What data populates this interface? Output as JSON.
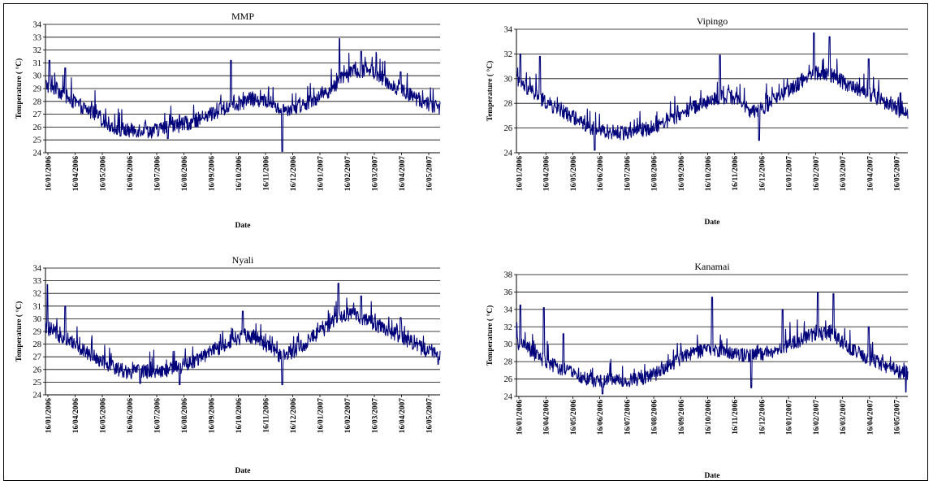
{
  "chart_data": [
    {
      "type": "line",
      "title": "MMP",
      "xlabel": "Date",
      "ylabel": "Temperature ( °C)",
      "ylim": [
        24,
        34
      ],
      "yticks": [
        24,
        25,
        26,
        27,
        28,
        29,
        30,
        31,
        32,
        33,
        34
      ],
      "grid": true,
      "x_tick_labels": [
        "16/01/2006",
        "16/04/2006",
        "16/05/2006",
        "16/06/2006",
        "16/07/2006",
        "16/08/2006",
        "16/09/2006",
        "16/10/2006",
        "16/11/2006",
        "16/12/2006",
        "16/01/2007",
        "16/02/2007",
        "16/03/2007",
        "16/04/2007",
        "16/05/2007"
      ],
      "series": [
        {
          "color": "#00007a",
          "points": [
            [
              0,
              29.3
            ],
            [
              0.03,
              28.9
            ],
            [
              0.06,
              28.2
            ],
            [
              0.09,
              27.6
            ],
            [
              0.12,
              27.1
            ],
            [
              0.15,
              26.4
            ],
            [
              0.18,
              25.9
            ],
            [
              0.21,
              25.7
            ],
            [
              0.24,
              25.8
            ],
            [
              0.27,
              25.7
            ],
            [
              0.3,
              25.9
            ],
            [
              0.33,
              26.1
            ],
            [
              0.36,
              26.3
            ],
            [
              0.39,
              26.6
            ],
            [
              0.42,
              27.0
            ],
            [
              0.45,
              27.4
            ],
            [
              0.48,
              27.8
            ],
            [
              0.51,
              28.0
            ],
            [
              0.54,
              28.1
            ],
            [
              0.57,
              27.9
            ],
            [
              0.6,
              27.4
            ],
            [
              0.63,
              27.5
            ],
            [
              0.66,
              27.9
            ],
            [
              0.69,
              28.3
            ],
            [
              0.72,
              28.9
            ],
            [
              0.75,
              29.7
            ],
            [
              0.78,
              30.3
            ],
            [
              0.81,
              30.4
            ],
            [
              0.84,
              30.2
            ],
            [
              0.87,
              29.4
            ],
            [
              0.9,
              28.9
            ],
            [
              0.93,
              28.4
            ],
            [
              0.96,
              27.9
            ],
            [
              1.0,
              27.5
            ]
          ],
          "extremes": [
            [
              0.01,
              31.2
            ],
            [
              0.05,
              30.6
            ],
            [
              0.19,
              25.3
            ],
            [
              0.31,
              25.1
            ],
            [
              0.47,
              31.2
            ],
            [
              0.6,
              24.1
            ],
            [
              0.745,
              32.9
            ],
            [
              0.8,
              31.9
            ],
            [
              0.9,
              30.3
            ]
          ]
        }
      ]
    },
    {
      "type": "line",
      "title": "Vipingo",
      "xlabel": "Date",
      "ylabel": "Temperature ( °C)",
      "ylim": [
        24,
        34
      ],
      "yticks": [
        24,
        26,
        28,
        30,
        32,
        34
      ],
      "grid": true,
      "x_tick_labels": [
        "16/01/2006",
        "16/04/2006",
        "16/05/2006",
        "16/06/2006",
        "16/07/2006",
        "16/08/2006",
        "16/09/2006",
        "16/10/2006",
        "16/11/2006",
        "16/12/2006",
        "16/01/2007",
        "16/02/2007",
        "16/03/2007",
        "16/04/2007",
        "16/05/2007"
      ],
      "series": [
        {
          "color": "#00007a",
          "points": [
            [
              0,
              29.8
            ],
            [
              0.03,
              29.2
            ],
            [
              0.06,
              28.4
            ],
            [
              0.09,
              27.8
            ],
            [
              0.12,
              27.3
            ],
            [
              0.15,
              26.8
            ],
            [
              0.18,
              26.2
            ],
            [
              0.21,
              25.8
            ],
            [
              0.24,
              25.7
            ],
            [
              0.27,
              25.6
            ],
            [
              0.3,
              25.8
            ],
            [
              0.33,
              25.9
            ],
            [
              0.36,
              26.2
            ],
            [
              0.39,
              26.6
            ],
            [
              0.42,
              27.1
            ],
            [
              0.45,
              27.6
            ],
            [
              0.48,
              28.0
            ],
            [
              0.51,
              28.4
            ],
            [
              0.54,
              28.6
            ],
            [
              0.57,
              28.2
            ],
            [
              0.6,
              27.2
            ],
            [
              0.63,
              27.6
            ],
            [
              0.66,
              28.3
            ],
            [
              0.69,
              28.9
            ],
            [
              0.72,
              29.6
            ],
            [
              0.75,
              30.3
            ],
            [
              0.78,
              30.5
            ],
            [
              0.81,
              30.2
            ],
            [
              0.84,
              29.6
            ],
            [
              0.87,
              29.2
            ],
            [
              0.9,
              28.8
            ],
            [
              0.93,
              28.3
            ],
            [
              0.96,
              27.8
            ],
            [
              1.0,
              27.0
            ]
          ],
          "extremes": [
            [
              0.01,
              32.0
            ],
            [
              0.06,
              31.8
            ],
            [
              0.2,
              24.2
            ],
            [
              0.52,
              31.9
            ],
            [
              0.62,
              25.0
            ],
            [
              0.76,
              33.7
            ],
            [
              0.8,
              33.4
            ],
            [
              0.9,
              31.6
            ]
          ]
        }
      ]
    },
    {
      "type": "line",
      "title": "Nyali",
      "xlabel": "Date",
      "ylabel": "Temperature ( °C)",
      "ylim": [
        24,
        34
      ],
      "yticks": [
        24,
        25,
        26,
        27,
        28,
        29,
        30,
        31,
        32,
        33,
        34
      ],
      "grid": true,
      "x_tick_labels": [
        "16/01/2006",
        "16/04/2006",
        "16/05/2006",
        "16/06/2006",
        "16/07/2006",
        "16/08/2006",
        "16/09/2006",
        "16/10/2006",
        "16/11/2006",
        "16/12/2006",
        "16/01/2007",
        "16/02/2007",
        "16/03/2007",
        "16/04/2007",
        "16/05/2007"
      ],
      "series": [
        {
          "color": "#00007a",
          "points": [
            [
              0,
              29.4
            ],
            [
              0.03,
              28.8
            ],
            [
              0.06,
              28.3
            ],
            [
              0.09,
              27.7
            ],
            [
              0.12,
              27.1
            ],
            [
              0.15,
              26.6
            ],
            [
              0.18,
              26.1
            ],
            [
              0.21,
              25.8
            ],
            [
              0.24,
              25.9
            ],
            [
              0.27,
              25.8
            ],
            [
              0.3,
              25.9
            ],
            [
              0.33,
              26.1
            ],
            [
              0.36,
              26.4
            ],
            [
              0.39,
              26.9
            ],
            [
              0.42,
              27.4
            ],
            [
              0.45,
              27.9
            ],
            [
              0.48,
              28.4
            ],
            [
              0.51,
              28.7
            ],
            [
              0.54,
              28.5
            ],
            [
              0.57,
              27.6
            ],
            [
              0.6,
              26.9
            ],
            [
              0.63,
              27.5
            ],
            [
              0.66,
              28.1
            ],
            [
              0.69,
              28.8
            ],
            [
              0.72,
              29.5
            ],
            [
              0.75,
              30.3
            ],
            [
              0.78,
              30.4
            ],
            [
              0.81,
              30.0
            ],
            [
              0.84,
              29.5
            ],
            [
              0.87,
              29.1
            ],
            [
              0.9,
              28.6
            ],
            [
              0.93,
              28.1
            ],
            [
              0.96,
              27.6
            ],
            [
              1.0,
              27.3
            ]
          ],
          "extremes": [
            [
              0.005,
              32.7
            ],
            [
              0.05,
              31.0
            ],
            [
              0.24,
              24.9
            ],
            [
              0.34,
              24.8
            ],
            [
              0.5,
              30.6
            ],
            [
              0.6,
              24.8
            ],
            [
              0.742,
              32.8
            ],
            [
              0.8,
              31.8
            ],
            [
              0.9,
              30.1
            ],
            [
              0.995,
              26.4
            ]
          ]
        }
      ]
    },
    {
      "type": "line",
      "title": "Kanamai",
      "xlabel": "Date",
      "ylabel": "Temperature ( °C)",
      "ylim": [
        24,
        38
      ],
      "yticks": [
        24,
        26,
        28,
        30,
        32,
        34,
        36,
        38
      ],
      "grid": true,
      "x_tick_labels": [
        "16/01/2006",
        "16/04/2006",
        "16/05/2006",
        "16/06/2006",
        "16/07/2006",
        "16/08/2006",
        "16/09/2006",
        "16/10/2006",
        "16/11/2006",
        "16/12/2006",
        "16/01/2007",
        "16/02/2007",
        "16/03/2007",
        "16/04/2007",
        "16/05/2007"
      ],
      "series": [
        {
          "color": "#00007a",
          "points": [
            [
              0,
              30.2
            ],
            [
              0.03,
              29.4
            ],
            [
              0.06,
              28.4
            ],
            [
              0.09,
              27.6
            ],
            [
              0.12,
              27.1
            ],
            [
              0.15,
              26.6
            ],
            [
              0.18,
              26.1
            ],
            [
              0.21,
              25.7
            ],
            [
              0.24,
              25.8
            ],
            [
              0.27,
              25.8
            ],
            [
              0.3,
              25.9
            ],
            [
              0.33,
              26.2
            ],
            [
              0.36,
              26.7
            ],
            [
              0.39,
              27.5
            ],
            [
              0.42,
              28.4
            ],
            [
              0.45,
              29.0
            ],
            [
              0.48,
              29.3
            ],
            [
              0.51,
              29.2
            ],
            [
              0.54,
              29.0
            ],
            [
              0.57,
              28.8
            ],
            [
              0.6,
              28.6
            ],
            [
              0.63,
              28.9
            ],
            [
              0.66,
              29.3
            ],
            [
              0.69,
              29.8
            ],
            [
              0.72,
              30.3
            ],
            [
              0.75,
              31.0
            ],
            [
              0.78,
              31.2
            ],
            [
              0.81,
              30.9
            ],
            [
              0.84,
              29.9
            ],
            [
              0.87,
              29.1
            ],
            [
              0.9,
              28.4
            ],
            [
              0.93,
              27.8
            ],
            [
              0.96,
              27.2
            ],
            [
              1.0,
              26.6
            ]
          ],
          "extremes": [
            [
              0.01,
              34.5
            ],
            [
              0.07,
              34.2
            ],
            [
              0.12,
              31.2
            ],
            [
              0.22,
              24.3
            ],
            [
              0.5,
              35.4
            ],
            [
              0.6,
              25.0
            ],
            [
              0.68,
              34.0
            ],
            [
              0.77,
              35.9
            ],
            [
              0.81,
              35.8
            ],
            [
              0.9,
              32.0
            ],
            [
              0.995,
              24.5
            ]
          ]
        }
      ]
    }
  ]
}
